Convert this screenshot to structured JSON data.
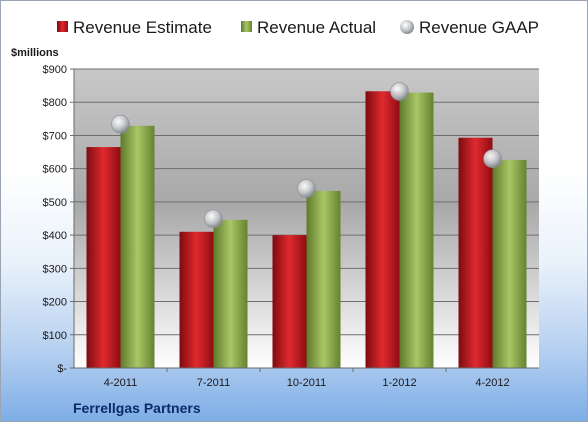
{
  "chart_data": {
    "type": "bar",
    "company": "Ferrellgas Partners",
    "unit_label": "$millions",
    "categories": [
      "4-2011",
      "7-2011",
      "10-2011",
      "1-2012",
      "4-2012"
    ],
    "series": [
      {
        "name": "Revenue Estimate",
        "type": "bar",
        "color": "#c8141c",
        "values": [
          665,
          410,
          400,
          833,
          693
        ]
      },
      {
        "name": "Revenue Actual",
        "type": "bar",
        "color": "#8fae4e",
        "values": [
          729,
          446,
          533,
          829,
          626
        ]
      },
      {
        "name": "Revenue GAAP",
        "type": "marker",
        "color": "#c9ccd2",
        "values": [
          734,
          449,
          540,
          832,
          630
        ]
      }
    ],
    "y_ticks": [
      "$-",
      "$100",
      "$200",
      "$300",
      "$400",
      "$500",
      "$600",
      "$700",
      "$800",
      "$900"
    ],
    "ylim": [
      0,
      900
    ],
    "grid": true,
    "legend_position": "top"
  }
}
